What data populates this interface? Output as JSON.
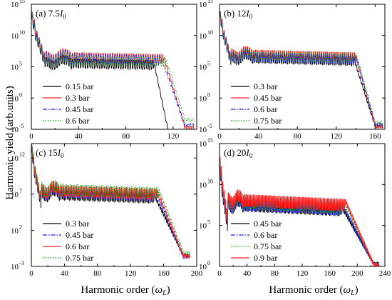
{
  "figure": {
    "ylabel": "Harmonic yield (arb.units)",
    "xlabel_text": "Harmonic order (",
    "xlabel_symbol": "ω",
    "xlabel_sub": "L",
    "xlabel_close": ")"
  },
  "chart_data": [
    {
      "type": "line",
      "panel": "a",
      "title_prefix": "(a) 7.5",
      "title_symbol": "I",
      "title_sub": "0",
      "xlim": [
        0,
        140
      ],
      "xticks": [
        0,
        40,
        80,
        120
      ],
      "ylog": true,
      "ylim_exp": [
        -5,
        15
      ],
      "yticks_exp": [
        -5,
        0,
        5,
        10,
        15
      ],
      "legend_position": "lower-left",
      "series": [
        {
          "name": "0.15 bar",
          "color": "#000000",
          "dash": "solid",
          "plateau": 5.4,
          "cutoff": 104,
          "end_level": -5.3,
          "end_x": 124,
          "peak": 13.2
        },
        {
          "name": "0.3 bar",
          "color": "#ff2020",
          "dash": "solid",
          "plateau": 6.4,
          "cutoff": 112,
          "end_level": -4.6,
          "end_x": 138,
          "peak": 13.8
        },
        {
          "name": "0.45 bar",
          "color": "#1a1aff",
          "dash": "dashdot",
          "plateau": 6.2,
          "cutoff": 110,
          "end_level": -4.2,
          "end_x": 138,
          "peak": 13.6
        },
        {
          "name": "0.6 bar",
          "color": "#119911",
          "dash": "dot",
          "plateau": 6.0,
          "cutoff": 114,
          "end_level": -3.4,
          "end_x": 138,
          "peak": 13.4
        }
      ]
    },
    {
      "type": "line",
      "panel": "b",
      "title_prefix": "(b) 12",
      "title_symbol": "I",
      "title_sub": "0",
      "xlim": [
        0,
        170
      ],
      "xticks": [
        0,
        40,
        80,
        120,
        160
      ],
      "ylog": true,
      "ylim_exp": [
        -5,
        15
      ],
      "yticks_exp": [
        -5,
        0,
        5,
        10,
        15
      ],
      "legend_position": "lower-left",
      "series": [
        {
          "name": "0.3 bar",
          "color": "#000000",
          "dash": "solid",
          "plateau": 6.2,
          "cutoff": 138,
          "end_level": -4.4,
          "end_x": 168,
          "peak": 13.6
        },
        {
          "name": "0.45 bar",
          "color": "#ff2020",
          "dash": "solid",
          "plateau": 6.8,
          "cutoff": 140,
          "end_level": -4.5,
          "end_x": 168,
          "peak": 13.9
        },
        {
          "name": "0.6 bar",
          "color": "#1a1aff",
          "dash": "dashdot",
          "plateau": 6.4,
          "cutoff": 140,
          "end_level": -4.1,
          "end_x": 168,
          "peak": 13.7
        },
        {
          "name": "0.75 bar",
          "color": "#119911",
          "dash": "dot",
          "plateau": 6.6,
          "cutoff": 141,
          "end_level": -3.8,
          "end_x": 168,
          "peak": 13.5
        }
      ]
    },
    {
      "type": "line",
      "panel": "c",
      "title_prefix": "(c) 15",
      "title_symbol": "I",
      "title_sub": "0",
      "xlim": [
        0,
        200
      ],
      "xticks": [
        0,
        40,
        80,
        120,
        160,
        200
      ],
      "ylog": true,
      "ylim_exp": [
        -3,
        14
      ],
      "yticks_exp": [
        -3,
        2,
        7,
        12
      ],
      "legend_position": "lower-left",
      "series": [
        {
          "name": "0.3 bar",
          "color": "#000000",
          "dash": "solid",
          "plateau": 6.8,
          "cutoff": 148,
          "end_level": -1.4,
          "end_x": 192,
          "peak": 13.4
        },
        {
          "name": "0.45 bar",
          "color": "#1a1aff",
          "dash": "dashdot",
          "plateau": 7.1,
          "cutoff": 150,
          "end_level": -1.6,
          "end_x": 192,
          "peak": 13.6
        },
        {
          "name": "0.6 bar",
          "color": "#ff2020",
          "dash": "solid",
          "plateau": 7.3,
          "cutoff": 152,
          "end_level": -1.5,
          "end_x": 192,
          "peak": 13.8
        },
        {
          "name": "0.75 bar",
          "color": "#119911",
          "dash": "dot",
          "plateau": 7.5,
          "cutoff": 154,
          "end_level": -1.0,
          "end_x": 192,
          "peak": 13.9
        }
      ]
    },
    {
      "type": "line",
      "panel": "d",
      "title_prefix": "(d) 20",
      "title_symbol": "I",
      "title_sub": "0",
      "xlim": [
        0,
        240
      ],
      "xticks": [
        0,
        40,
        80,
        120,
        160,
        200,
        240
      ],
      "ylog": true,
      "ylim_exp": [
        0,
        15
      ],
      "yticks_exp": [
        0,
        5,
        10,
        15
      ],
      "legend_position": "lower-left",
      "series": [
        {
          "name": "0.45 bar",
          "color": "#000000",
          "dash": "solid",
          "plateau": 7.3,
          "cutoff": 176,
          "end_level": 0.4,
          "end_x": 232,
          "peak": 12.6
        },
        {
          "name": "0.6 bar",
          "color": "#1a1aff",
          "dash": "dashdot",
          "plateau": 7.4,
          "cutoff": 178,
          "end_level": 0.35,
          "end_x": 232,
          "peak": 12.8
        },
        {
          "name": "0.75 bar",
          "color": "#119911",
          "dash": "dot",
          "plateau": 7.6,
          "cutoff": 180,
          "end_level": 0.3,
          "end_x": 232,
          "peak": 13.0
        },
        {
          "name": "0.9 bar",
          "color": "#ff2020",
          "dash": "solid",
          "plateau": 7.9,
          "cutoff": 182,
          "end_level": 0.3,
          "end_x": 232,
          "peak": 13.4
        }
      ]
    }
  ]
}
